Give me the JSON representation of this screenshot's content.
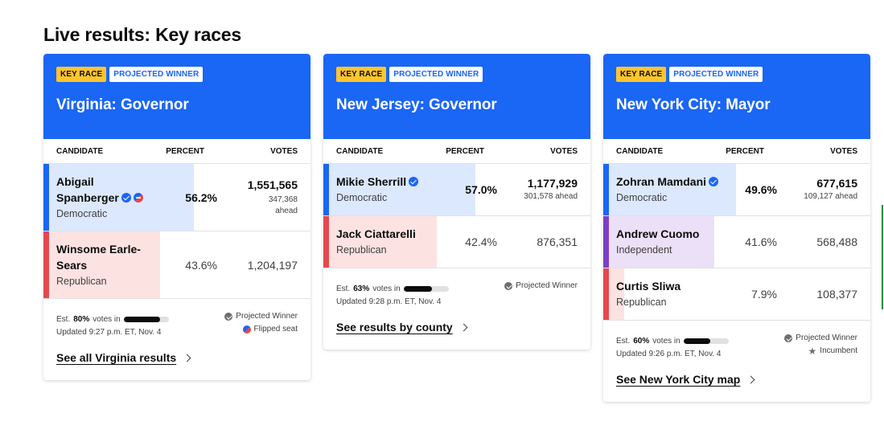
{
  "page_title": "Live results: Key races",
  "columns": {
    "candidate": "CANDIDATE",
    "percent": "PERCENT",
    "votes": "VOTES"
  },
  "colors": {
    "header_blue": "#1a66f5",
    "democratic_strip": "#1a66f5",
    "democratic_fill": "#dce8fd",
    "republican_strip": "#e5484d",
    "republican_fill": "#fde2e2",
    "independent_strip": "#7b3fc4",
    "independent_fill": "#ebe0f7",
    "key_badge": "#ffc62c"
  },
  "races": [
    {
      "badge_key": "KEY RACE",
      "badge_projected": "PROJECTED WINNER",
      "title": "Virginia: Governor",
      "candidates": [
        {
          "name": "Abigail Spanberger",
          "party": "Democratic",
          "percent": "56.2%",
          "percent_value": 56.2,
          "votes": "1,551,565",
          "ahead": "347,368 ahead",
          "winner": true,
          "flipped": true,
          "party_key": "dem"
        },
        {
          "name": "Winsome Earle-Sears",
          "party": "Republican",
          "percent": "43.6%",
          "percent_value": 43.6,
          "votes": "1,204,197",
          "ahead": "",
          "winner": false,
          "flipped": false,
          "party_key": "rep"
        }
      ],
      "est_prefix": "Est.",
      "est_pct": "80%",
      "est_suffix": "votes in",
      "est_value": 80,
      "updated": "Updated 9:27 p.m. ET, Nov. 4",
      "legend": [
        "Projected Winner",
        "Flipped seat"
      ],
      "link": "See all Virginia results"
    },
    {
      "badge_key": "KEY RACE",
      "badge_projected": "PROJECTED WINNER",
      "title": "New Jersey: Governor",
      "candidates": [
        {
          "name": "Mikie Sherrill",
          "party": "Democratic",
          "percent": "57.0%",
          "percent_value": 57.0,
          "votes": "1,177,929",
          "ahead": "301,578 ahead",
          "winner": true,
          "flipped": false,
          "party_key": "dem"
        },
        {
          "name": "Jack Ciattarelli",
          "party": "Republican",
          "percent": "42.4%",
          "percent_value": 42.4,
          "votes": "876,351",
          "ahead": "",
          "winner": false,
          "flipped": false,
          "party_key": "rep"
        }
      ],
      "est_prefix": "Est.",
      "est_pct": "63%",
      "est_suffix": "votes in",
      "est_value": 63,
      "updated": "Updated 9:28 p.m. ET, Nov. 4",
      "legend": [
        "Projected Winner"
      ],
      "link": "See results by county"
    },
    {
      "badge_key": "KEY RACE",
      "badge_projected": "PROJECTED WINNER",
      "title": "New York City: Mayor",
      "candidates": [
        {
          "name": "Zohran Mamdani",
          "party": "Democratic",
          "percent": "49.6%",
          "percent_value": 49.6,
          "votes": "677,615",
          "ahead": "109,127 ahead",
          "winner": true,
          "flipped": false,
          "party_key": "dem"
        },
        {
          "name": "Andrew Cuomo",
          "party": "Independent",
          "percent": "41.6%",
          "percent_value": 41.6,
          "votes": "568,488",
          "ahead": "",
          "winner": false,
          "flipped": false,
          "party_key": "ind"
        },
        {
          "name": "Curtis Sliwa",
          "party": "Republican",
          "percent": "7.9%",
          "percent_value": 7.9,
          "votes": "108,377",
          "ahead": "",
          "winner": false,
          "flipped": false,
          "party_key": "rep"
        }
      ],
      "est_prefix": "Est.",
      "est_pct": "60%",
      "est_suffix": "votes in",
      "est_value": 60,
      "updated": "Updated 9:26 p.m. ET, Nov. 4",
      "legend": [
        "Projected Winner",
        "Incumbent"
      ],
      "link": "See New York City map"
    }
  ]
}
